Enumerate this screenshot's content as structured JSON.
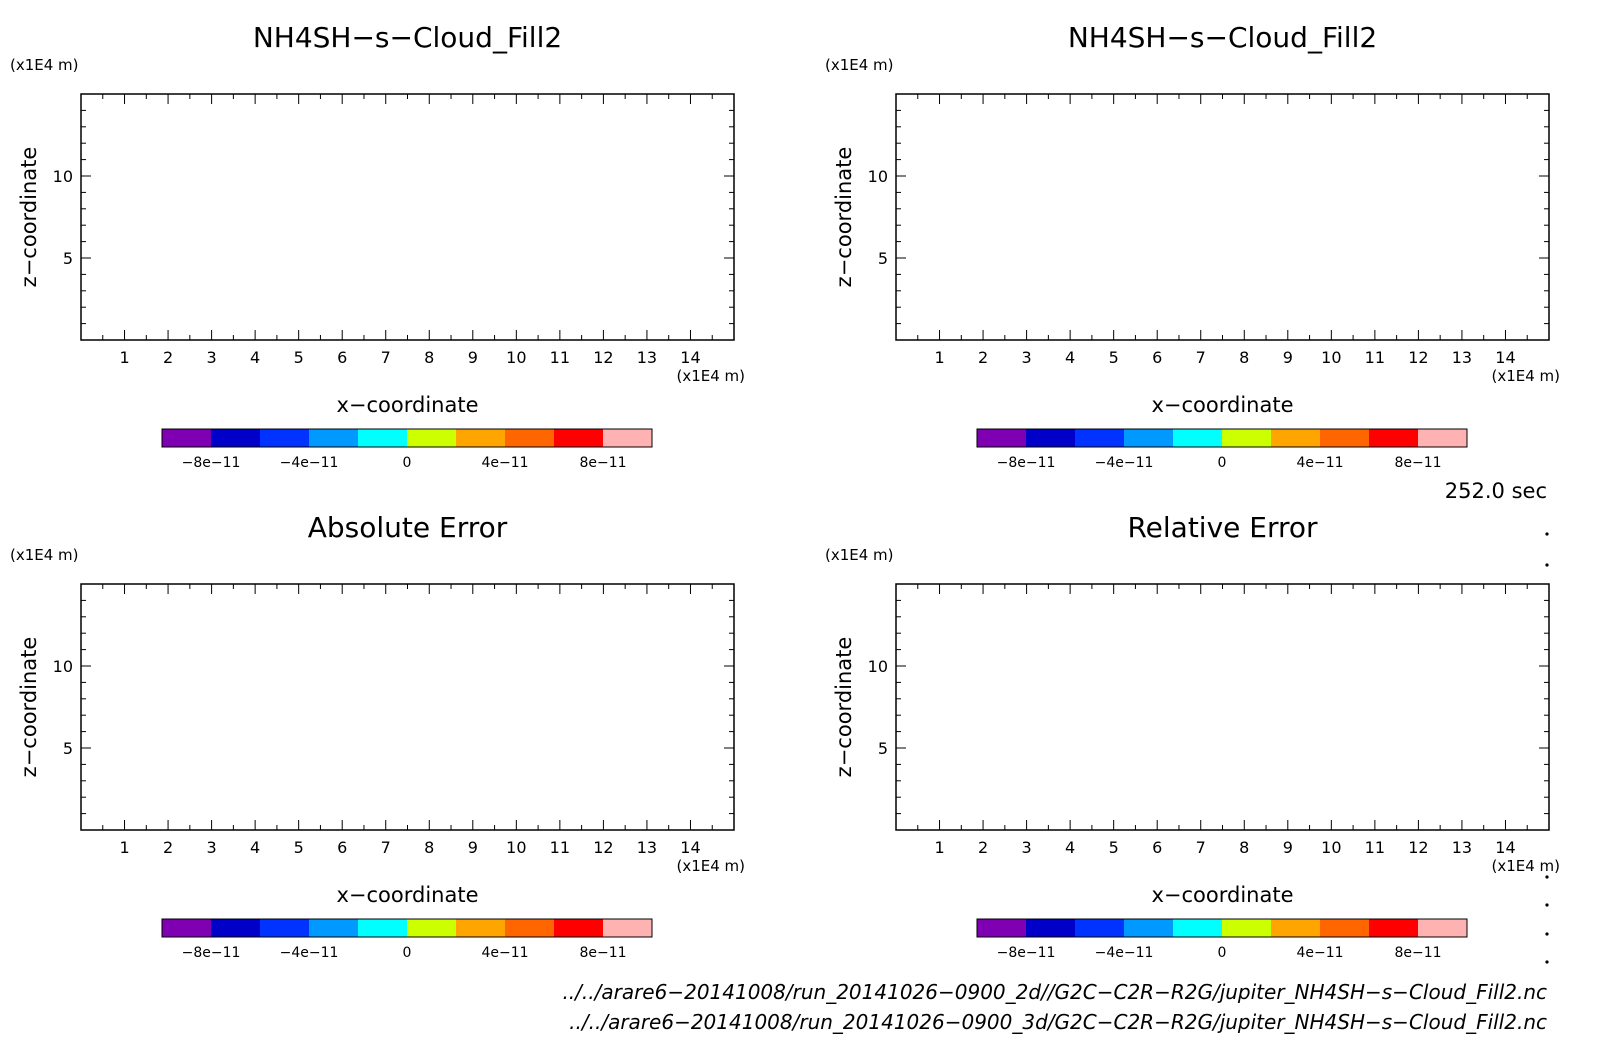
{
  "chart_data": [
    {
      "type": "heatmap",
      "title": "NH4SH−s−Cloud_Fill2",
      "xlabel": "x−coordinate",
      "ylabel": "z−coordinate",
      "x_unit": "(x1E4 m)",
      "y_unit": "(x1E4 m)",
      "xlim": [
        0,
        15
      ],
      "ylim": [
        0,
        15
      ],
      "xticks": [
        1,
        2,
        3,
        4,
        5,
        6,
        7,
        8,
        9,
        10,
        11,
        12,
        13,
        14
      ],
      "yticks": [
        5,
        10
      ],
      "colorbar": {
        "ticks": [
          "−8e−11",
          "−4e−11",
          "0",
          "4e−11",
          "8e−11"
        ],
        "range": [
          -1e-10,
          1e-10
        ]
      },
      "values": []
    },
    {
      "type": "heatmap",
      "title": "NH4SH−s−Cloud_Fill2",
      "xlabel": "x−coordinate",
      "ylabel": "z−coordinate",
      "x_unit": "(x1E4 m)",
      "y_unit": "(x1E4 m)",
      "xlim": [
        0,
        15
      ],
      "ylim": [
        0,
        15
      ],
      "xticks": [
        1,
        2,
        3,
        4,
        5,
        6,
        7,
        8,
        9,
        10,
        11,
        12,
        13,
        14
      ],
      "yticks": [
        5,
        10
      ],
      "colorbar": {
        "ticks": [
          "−8e−11",
          "−4e−11",
          "0",
          "4e−11",
          "8e−11"
        ],
        "range": [
          -1e-10,
          1e-10
        ]
      },
      "values": []
    },
    {
      "type": "heatmap",
      "title": "Absolute Error",
      "xlabel": "x−coordinate",
      "ylabel": "z−coordinate",
      "x_unit": "(x1E4 m)",
      "y_unit": "(x1E4 m)",
      "xlim": [
        0,
        15
      ],
      "ylim": [
        0,
        15
      ],
      "xticks": [
        1,
        2,
        3,
        4,
        5,
        6,
        7,
        8,
        9,
        10,
        11,
        12,
        13,
        14
      ],
      "yticks": [
        5,
        10
      ],
      "colorbar": {
        "ticks": [
          "−8e−11",
          "−4e−11",
          "0",
          "4e−11",
          "8e−11"
        ],
        "range": [
          -1e-10,
          1e-10
        ]
      },
      "values": []
    },
    {
      "type": "heatmap",
      "title": "Relative Error",
      "xlabel": "x−coordinate",
      "ylabel": "z−coordinate",
      "x_unit": "(x1E4 m)",
      "y_unit": "(x1E4 m)",
      "xlim": [
        0,
        15
      ],
      "ylim": [
        0,
        15
      ],
      "xticks": [
        1,
        2,
        3,
        4,
        5,
        6,
        7,
        8,
        9,
        10,
        11,
        12,
        13,
        14
      ],
      "yticks": [
        5,
        10
      ],
      "colorbar": {
        "ticks": [
          "−8e−11",
          "−4e−11",
          "0",
          "4e−11",
          "8e−11"
        ],
        "range": [
          -1e-10,
          1e-10
        ]
      },
      "values": []
    }
  ],
  "colorbar_colors": [
    "#7f00b2",
    "#0000c8",
    "#0033ff",
    "#0099ff",
    "#00ffff",
    "#ccff00",
    "#ffa500",
    "#ff6600",
    "#ff0000",
    "#ffb2b2"
  ],
  "time_label": "252.0 sec",
  "file_paths": [
    "../../arare6−20141008/run_20141026−0900_2d//G2C−C2R−R2G/jupiter_NH4SH−s−Cloud_Fill2.nc",
    "../../arare6−20141008/run_20141026−0900_3d/G2C−C2R−R2G/jupiter_NH4SH−s−Cloud_Fill2.nc"
  ]
}
